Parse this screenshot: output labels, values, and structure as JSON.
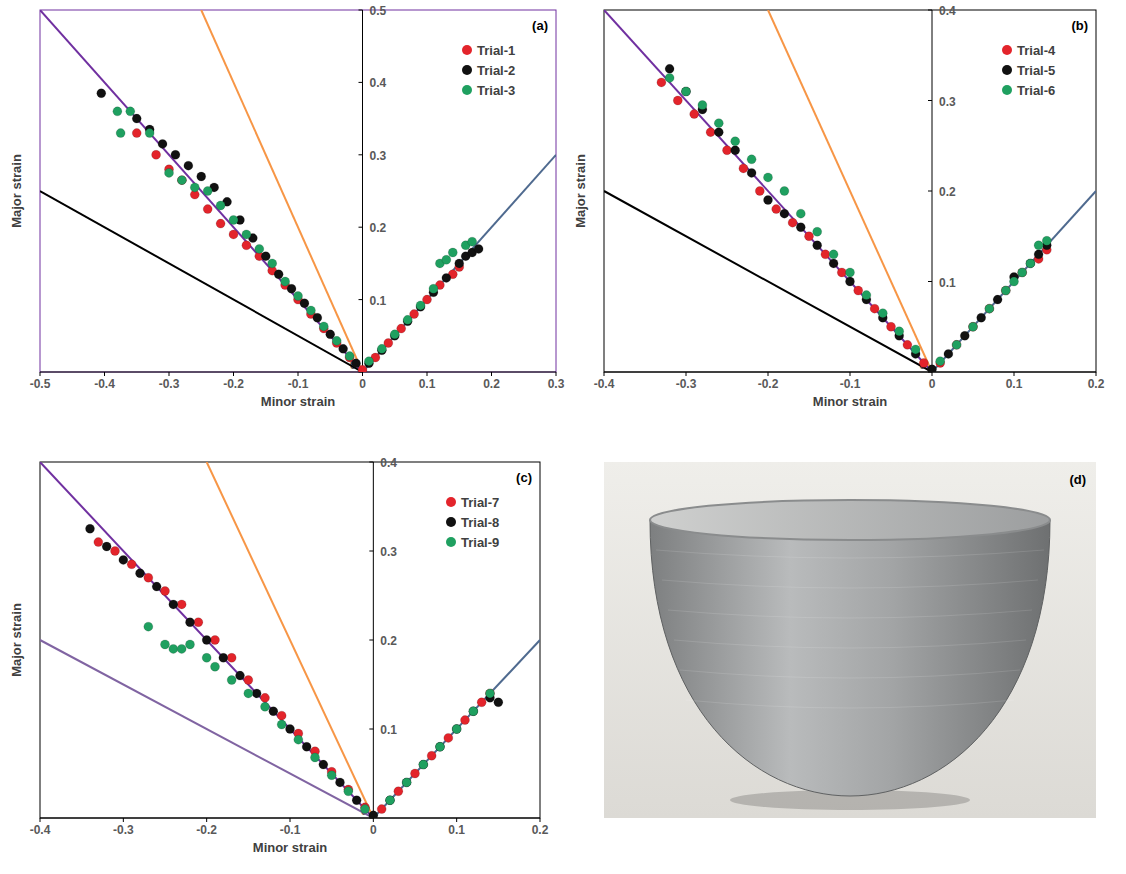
{
  "chart_data": [
    {
      "type": "scatter",
      "panel_label": "(a)",
      "xlabel": "Minor strain",
      "ylabel": "Major strain",
      "xlim": [
        -0.5,
        0.3
      ],
      "ylim": [
        0,
        0.5
      ],
      "xticks": [
        -0.5,
        -0.4,
        -0.3,
        -0.2,
        -0.1,
        0,
        0.1,
        0.2,
        0.3
      ],
      "yticks": [
        0,
        0.1,
        0.2,
        0.3,
        0.4,
        0.5
      ],
      "grid": false,
      "legend": "upper right",
      "series": [
        {
          "type": "line",
          "color": "#7030a0",
          "line_style": "solid",
          "x": [
            -0.5,
            0
          ],
          "values": [
            0.5,
            0
          ]
        },
        {
          "type": "line",
          "color": "#f79646",
          "line_style": "solid",
          "x": [
            -0.25,
            0
          ],
          "values": [
            0.5,
            0
          ]
        },
        {
          "type": "line",
          "color": "#000000",
          "line_style": "solid",
          "x": [
            -0.5,
            0
          ],
          "values": [
            0.25,
            0
          ]
        },
        {
          "type": "line",
          "color": "#4f6a8f",
          "line_style": "solid",
          "x": [
            0,
            0.3
          ],
          "values": [
            0,
            0.3
          ]
        },
        {
          "name": "Trial-1",
          "type": "scatter",
          "marker": "circle",
          "color": "#e3242b",
          "x": [
            -0.35,
            -0.32,
            -0.3,
            -0.28,
            -0.26,
            -0.24,
            -0.22,
            -0.2,
            -0.18,
            -0.16,
            -0.14,
            -0.12,
            -0.1,
            -0.08,
            -0.06,
            -0.04,
            -0.02,
            0.0,
            0.02,
            0.04,
            0.06,
            0.08,
            0.1,
            0.12,
            0.14,
            0.15
          ],
          "values": [
            0.33,
            0.3,
            0.28,
            0.265,
            0.245,
            0.225,
            0.205,
            0.19,
            0.175,
            0.16,
            0.14,
            0.12,
            0.1,
            0.08,
            0.06,
            0.04,
            0.02,
            0.003,
            0.02,
            0.04,
            0.06,
            0.08,
            0.1,
            0.12,
            0.135,
            0.145
          ]
        },
        {
          "name": "Trial-2",
          "type": "scatter",
          "marker": "circle",
          "color": "#111111",
          "x": [
            -0.405,
            -0.35,
            -0.33,
            -0.31,
            -0.29,
            -0.27,
            -0.25,
            -0.23,
            -0.21,
            -0.19,
            -0.17,
            -0.15,
            -0.13,
            -0.11,
            -0.09,
            -0.07,
            -0.05,
            -0.03,
            -0.01,
            0.01,
            0.03,
            0.05,
            0.07,
            0.09,
            0.11,
            0.13,
            0.15,
            0.16,
            0.17,
            0.18
          ],
          "values": [
            0.385,
            0.35,
            0.335,
            0.315,
            0.3,
            0.285,
            0.27,
            0.255,
            0.235,
            0.21,
            0.185,
            0.16,
            0.135,
            0.115,
            0.095,
            0.075,
            0.052,
            0.032,
            0.012,
            0.012,
            0.03,
            0.05,
            0.07,
            0.09,
            0.11,
            0.13,
            0.15,
            0.16,
            0.165,
            0.17
          ]
        },
        {
          "name": "Trial-3",
          "type": "scatter",
          "marker": "circle",
          "color": "#1fa060",
          "x": [
            -0.38,
            -0.36,
            -0.33,
            -0.375,
            -0.3,
            -0.28,
            -0.26,
            -0.24,
            -0.22,
            -0.2,
            -0.18,
            -0.16,
            -0.14,
            -0.12,
            -0.1,
            -0.08,
            -0.06,
            -0.04,
            -0.02,
            0.01,
            0.03,
            0.05,
            0.07,
            0.09,
            0.11,
            0.12,
            0.13,
            0.14,
            0.16,
            0.17
          ],
          "values": [
            0.36,
            0.36,
            0.33,
            0.33,
            0.275,
            0.265,
            0.255,
            0.25,
            0.23,
            0.21,
            0.19,
            0.17,
            0.15,
            0.125,
            0.105,
            0.085,
            0.063,
            0.043,
            0.022,
            0.015,
            0.032,
            0.052,
            0.072,
            0.092,
            0.115,
            0.15,
            0.155,
            0.165,
            0.175,
            0.18
          ]
        }
      ]
    },
    {
      "type": "scatter",
      "panel_label": "(b)",
      "xlabel": "Minor strain",
      "ylabel": "Major strain",
      "xlim": [
        -0.4,
        0.2
      ],
      "ylim": [
        0,
        0.4
      ],
      "xticks": [
        -0.4,
        -0.3,
        -0.2,
        -0.1,
        0,
        0.1,
        0.2
      ],
      "yticks": [
        0,
        0.1,
        0.2,
        0.3,
        0.4
      ],
      "grid": false,
      "legend": "upper right",
      "series": [
        {
          "type": "line",
          "color": "#7030a0",
          "line_style": "solid",
          "x": [
            -0.4,
            0
          ],
          "values": [
            0.4,
            0
          ]
        },
        {
          "type": "line",
          "color": "#f79646",
          "line_style": "solid",
          "x": [
            -0.2,
            0
          ],
          "values": [
            0.4,
            0
          ]
        },
        {
          "type": "line",
          "color": "#000000",
          "line_style": "solid",
          "x": [
            -0.4,
            0
          ],
          "values": [
            0.2,
            0
          ]
        },
        {
          "type": "line",
          "color": "#4f6a8f",
          "line_style": "solid",
          "x": [
            0,
            0.2
          ],
          "values": [
            0,
            0.2
          ]
        },
        {
          "name": "Trial-4",
          "type": "scatter",
          "marker": "circle",
          "color": "#e3242b",
          "x": [
            -0.33,
            -0.31,
            -0.29,
            -0.27,
            -0.25,
            -0.23,
            -0.21,
            -0.19,
            -0.17,
            -0.15,
            -0.13,
            -0.11,
            -0.09,
            -0.07,
            -0.05,
            -0.03,
            -0.01,
            0.01,
            0.03,
            0.05,
            0.07,
            0.09,
            0.11,
            0.13,
            0.14
          ],
          "values": [
            0.32,
            0.3,
            0.285,
            0.265,
            0.245,
            0.225,
            0.2,
            0.18,
            0.165,
            0.15,
            0.13,
            0.11,
            0.09,
            0.07,
            0.05,
            0.03,
            0.01,
            0.01,
            0.03,
            0.05,
            0.07,
            0.09,
            0.11,
            0.125,
            0.135
          ]
        },
        {
          "name": "Trial-5",
          "type": "scatter",
          "marker": "circle",
          "color": "#111111",
          "x": [
            -0.32,
            -0.3,
            -0.28,
            -0.26,
            -0.24,
            -0.22,
            -0.2,
            -0.18,
            -0.16,
            -0.14,
            -0.12,
            -0.1,
            -0.08,
            -0.06,
            -0.04,
            -0.02,
            0.0,
            0.02,
            0.04,
            0.06,
            0.08,
            0.1,
            0.12,
            0.13,
            0.14
          ],
          "values": [
            0.335,
            0.31,
            0.29,
            0.265,
            0.245,
            0.22,
            0.19,
            0.175,
            0.16,
            0.14,
            0.12,
            0.1,
            0.08,
            0.06,
            0.04,
            0.02,
            0.003,
            0.02,
            0.04,
            0.06,
            0.08,
            0.105,
            0.12,
            0.13,
            0.14
          ]
        },
        {
          "name": "Trial-6",
          "type": "scatter",
          "marker": "circle",
          "color": "#1fa060",
          "x": [
            -0.32,
            -0.3,
            -0.28,
            -0.26,
            -0.24,
            -0.22,
            -0.2,
            -0.18,
            -0.16,
            -0.14,
            -0.12,
            -0.1,
            -0.08,
            -0.06,
            -0.04,
            -0.02,
            0.01,
            0.03,
            0.05,
            0.07,
            0.09,
            0.1,
            0.11,
            0.12,
            0.13,
            0.14
          ],
          "values": [
            0.325,
            0.31,
            0.295,
            0.275,
            0.255,
            0.235,
            0.215,
            0.2,
            0.175,
            0.155,
            0.13,
            0.11,
            0.085,
            0.065,
            0.045,
            0.025,
            0.012,
            0.03,
            0.05,
            0.07,
            0.09,
            0.1,
            0.11,
            0.12,
            0.14,
            0.145
          ]
        }
      ]
    },
    {
      "type": "scatter",
      "panel_label": "(c)",
      "xlabel": "Minor strain",
      "ylabel": "Major strain",
      "xlim": [
        -0.4,
        0.2
      ],
      "ylim": [
        0,
        0.4
      ],
      "xticks": [
        -0.4,
        -0.3,
        -0.2,
        -0.1,
        0,
        0.1,
        0.2
      ],
      "yticks": [
        0,
        0.1,
        0.2,
        0.3,
        0.4
      ],
      "grid": false,
      "legend": "upper right",
      "series": [
        {
          "type": "line",
          "color": "#7030a0",
          "line_style": "solid",
          "x": [
            -0.4,
            0
          ],
          "values": [
            0.4,
            0
          ]
        },
        {
          "type": "line",
          "color": "#f79646",
          "line_style": "solid",
          "x": [
            -0.2,
            0
          ],
          "values": [
            0.4,
            0
          ]
        },
        {
          "type": "line",
          "color": "#8064a2",
          "line_style": "solid",
          "x": [
            -0.4,
            0
          ],
          "values": [
            0.2,
            0
          ]
        },
        {
          "type": "line",
          "color": "#4f6a8f",
          "line_style": "solid",
          "x": [
            0,
            0.2
          ],
          "values": [
            0,
            0.2
          ]
        },
        {
          "name": "Trial-7",
          "type": "scatter",
          "marker": "circle",
          "color": "#e3242b",
          "x": [
            -0.33,
            -0.31,
            -0.29,
            -0.27,
            -0.25,
            -0.23,
            -0.21,
            -0.19,
            -0.17,
            -0.15,
            -0.13,
            -0.11,
            -0.09,
            -0.07,
            -0.05,
            -0.03,
            -0.01,
            0.01,
            0.03,
            0.05,
            0.07,
            0.09,
            0.11,
            0.13,
            0.14
          ],
          "values": [
            0.31,
            0.3,
            0.285,
            0.27,
            0.255,
            0.24,
            0.22,
            0.2,
            0.18,
            0.155,
            0.135,
            0.115,
            0.095,
            0.075,
            0.052,
            0.032,
            0.012,
            0.01,
            0.03,
            0.05,
            0.07,
            0.09,
            0.11,
            0.13,
            0.14
          ]
        },
        {
          "name": "Trial-8",
          "type": "scatter",
          "marker": "circle",
          "color": "#111111",
          "x": [
            -0.34,
            -0.32,
            -0.3,
            -0.28,
            -0.26,
            -0.24,
            -0.22,
            -0.2,
            -0.18,
            -0.16,
            -0.14,
            -0.12,
            -0.1,
            -0.08,
            -0.06,
            -0.04,
            -0.02,
            0.0,
            0.02,
            0.04,
            0.06,
            0.08,
            0.1,
            0.12,
            0.14,
            0.15
          ],
          "values": [
            0.325,
            0.305,
            0.29,
            0.275,
            0.26,
            0.24,
            0.22,
            0.2,
            0.18,
            0.16,
            0.14,
            0.12,
            0.1,
            0.08,
            0.06,
            0.04,
            0.02,
            0.003,
            0.02,
            0.04,
            0.06,
            0.08,
            0.1,
            0.12,
            0.135,
            0.13
          ]
        },
        {
          "name": "Trial-9",
          "type": "scatter",
          "marker": "circle",
          "color": "#1fa060",
          "x": [
            -0.27,
            -0.25,
            -0.24,
            -0.23,
            -0.22,
            -0.2,
            -0.19,
            -0.17,
            -0.15,
            -0.13,
            -0.11,
            -0.09,
            -0.07,
            -0.05,
            -0.03,
            -0.01,
            0.02,
            0.04,
            0.06,
            0.08,
            0.1,
            0.12,
            0.14
          ],
          "values": [
            0.215,
            0.195,
            0.19,
            0.19,
            0.195,
            0.18,
            0.17,
            0.155,
            0.14,
            0.125,
            0.105,
            0.088,
            0.068,
            0.048,
            0.03,
            0.01,
            0.02,
            0.04,
            0.06,
            0.08,
            0.1,
            0.12,
            0.14
          ]
        }
      ]
    }
  ],
  "photo": {
    "panel_label": "(d)"
  }
}
